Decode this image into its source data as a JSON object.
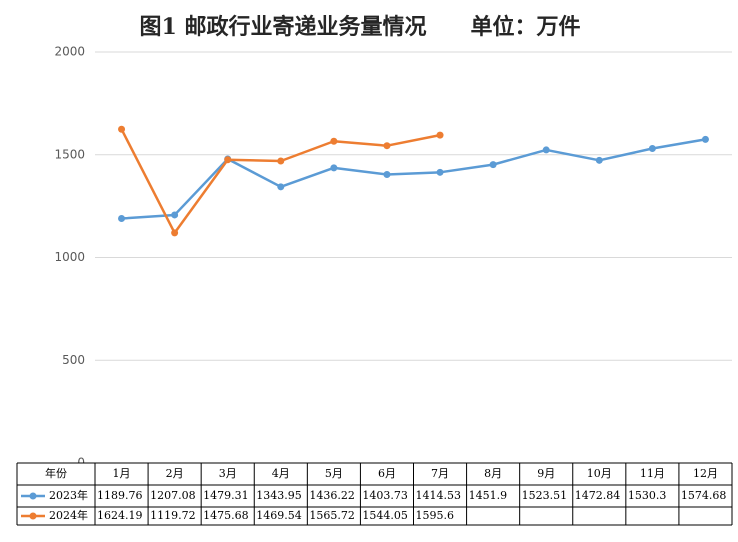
{
  "chart_data": {
    "type": "line",
    "title": "图1 邮政行业寄递业务量情况　　单位：万件",
    "categories": [
      "1月",
      "2月",
      "3月",
      "4月",
      "5月",
      "6月",
      "7月",
      "8月",
      "9月",
      "10月",
      "11月",
      "12月"
    ],
    "table_header": "年份",
    "series": [
      {
        "name": "2023年",
        "color": "#5b9bd5",
        "values": [
          1189.76,
          1207.08,
          1479.31,
          1343.95,
          1436.22,
          1403.73,
          1414.53,
          1451.9,
          1523.51,
          1472.84,
          1530.3,
          1574.68
        ]
      },
      {
        "name": "2024年",
        "color": "#ed7d31",
        "values": [
          1624.19,
          1119.72,
          1475.68,
          1469.54,
          1565.72,
          1544.05,
          1595.6,
          null,
          null,
          null,
          null,
          null
        ]
      }
    ],
    "ylim": [
      0,
      2000
    ],
    "yticks": [
      0,
      500,
      1000,
      1500,
      2000
    ],
    "grid": true
  }
}
